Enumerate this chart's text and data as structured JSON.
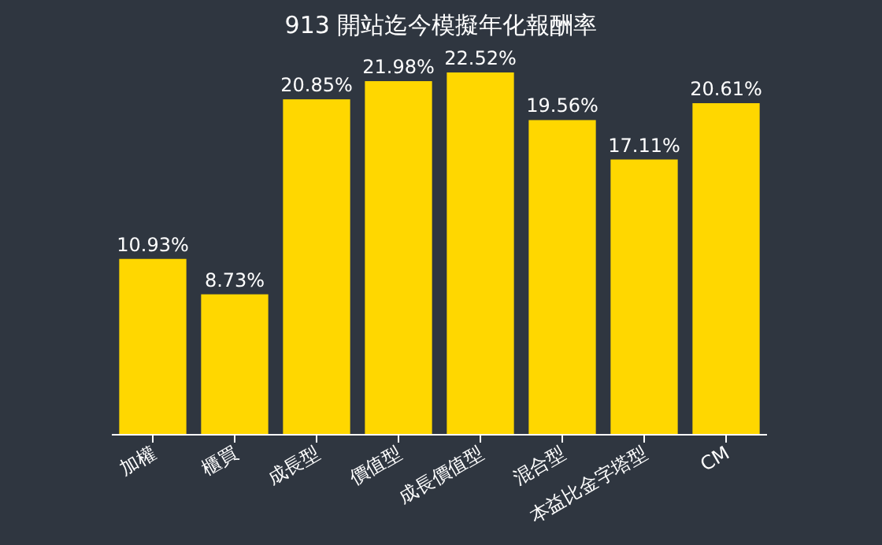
{
  "chart_data": {
    "type": "bar",
    "title": "913 開站迄今模擬年化報酬率",
    "categories": [
      "加權",
      "櫃買",
      "成長型",
      "價值型",
      "成長價值型",
      "混合型",
      "本益比金字塔型",
      "CM"
    ],
    "values": [
      10.93,
      8.73,
      20.85,
      21.98,
      22.52,
      19.56,
      17.11,
      20.61
    ],
    "value_labels": [
      "10.93%",
      "8.73%",
      "20.85%",
      "21.98%",
      "22.52%",
      "19.56%",
      "17.11%",
      "20.61%"
    ],
    "color": "#ffd700"
  }
}
